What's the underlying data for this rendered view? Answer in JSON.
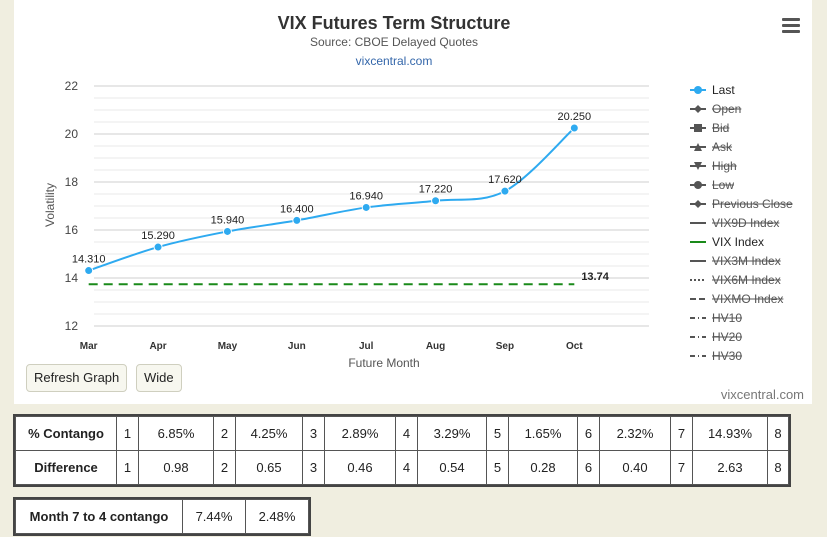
{
  "chart": {
    "title": "VIX Futures Term Structure",
    "subtitle": "Source: CBOE Delayed Quotes",
    "link": "vixcentral.com",
    "credit": "vixcentral.com"
  },
  "buttons": {
    "refresh": "Refresh Graph",
    "wide": "Wide"
  },
  "legend": [
    {
      "label": "Last",
      "active": true,
      "symbol": "circle",
      "color": "#2eaaf0"
    },
    {
      "label": "Open",
      "active": false,
      "symbol": "diamond"
    },
    {
      "label": "Bid",
      "active": false,
      "symbol": "square"
    },
    {
      "label": "Ask",
      "active": false,
      "symbol": "triangle"
    },
    {
      "label": "High",
      "active": false,
      "symbol": "triangle-down"
    },
    {
      "label": "Low",
      "active": false,
      "symbol": "circle"
    },
    {
      "label": "Previous Close",
      "active": false,
      "symbol": "diamond"
    },
    {
      "label": "VIX9D Index",
      "active": false,
      "symbol": "line-solid"
    },
    {
      "label": "VIX Index",
      "active": true,
      "symbol": "line-solid",
      "color": "#1a8a1a"
    },
    {
      "label": "VIX3M Index",
      "active": false,
      "symbol": "line-solid"
    },
    {
      "label": "VIX6M Index",
      "active": false,
      "symbol": "line-dotted"
    },
    {
      "label": "VIXMO Index",
      "active": false,
      "symbol": "line-dashed"
    },
    {
      "label": "HV10",
      "active": false,
      "symbol": "line-dashdot"
    },
    {
      "label": "HV20",
      "active": false,
      "symbol": "line-dashdot"
    },
    {
      "label": "HV30",
      "active": false,
      "symbol": "line-dashdot"
    }
  ],
  "chart_data": {
    "type": "line",
    "title": "VIX Futures Term Structure",
    "subtitle": "Source: CBOE Delayed Quotes",
    "xlabel": "Future Month",
    "ylabel": "Volatility",
    "categories": [
      "Mar",
      "Apr",
      "May",
      "Jun",
      "Jul",
      "Aug",
      "Sep",
      "Oct"
    ],
    "ylim": [
      12,
      22
    ],
    "yticks": [
      12,
      14,
      16,
      18,
      20,
      22
    ],
    "grid": true,
    "legend_position": "right",
    "series": [
      {
        "name": "Last",
        "color": "#2eaaf0",
        "values": [
          14.31,
          15.29,
          15.94,
          16.4,
          16.94,
          17.22,
          17.62,
          20.25
        ],
        "labels": [
          "14.310",
          "15.290",
          "15.940",
          "16.400",
          "16.940",
          "17.220",
          "17.620",
          "20.250"
        ]
      },
      {
        "name": "VIX Index",
        "color": "#1a8a1a",
        "style": "dashed",
        "values": [
          13.74,
          13.74,
          13.74,
          13.74,
          13.74,
          13.74,
          13.74,
          13.74
        ],
        "end_label": "13.74"
      }
    ]
  },
  "contango_table": {
    "rows": [
      {
        "header": "% Contango",
        "cells": [
          "1",
          "6.85%",
          "2",
          "4.25%",
          "3",
          "2.89%",
          "4",
          "3.29%",
          "5",
          "1.65%",
          "6",
          "2.32%",
          "7",
          "14.93%",
          "8"
        ]
      },
      {
        "header": "Difference",
        "cells": [
          "1",
          "0.98",
          "2",
          "0.65",
          "3",
          "0.46",
          "4",
          "0.54",
          "5",
          "0.28",
          "6",
          "0.40",
          "7",
          "2.63",
          "8"
        ]
      }
    ]
  },
  "month_table": {
    "header": "Month 7 to 4 contango",
    "values": [
      "7.44%",
      "2.48%"
    ]
  }
}
